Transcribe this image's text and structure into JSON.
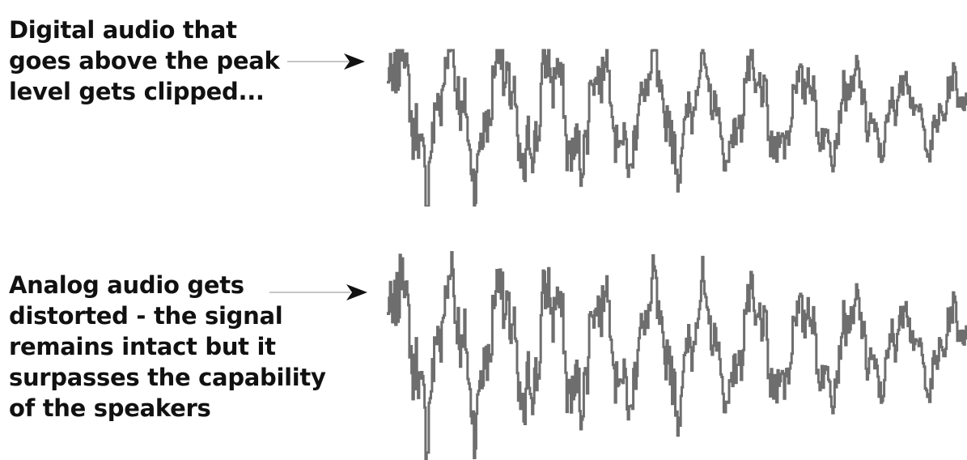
{
  "digital": {
    "caption_lines": [
      "Digital audio that",
      "goes above the peak",
      "level gets clipped..."
    ]
  },
  "analog": {
    "caption_lines": [
      "Analog audio gets",
      "distorted - the signal",
      "remains intact but it",
      "surpasses the capability",
      "of the speakers"
    ]
  },
  "colors": {
    "waveform": "#6e6e6e",
    "arrow_line": "#b4b4b4",
    "arrow_head": "#111111",
    "text": "#111111"
  }
}
